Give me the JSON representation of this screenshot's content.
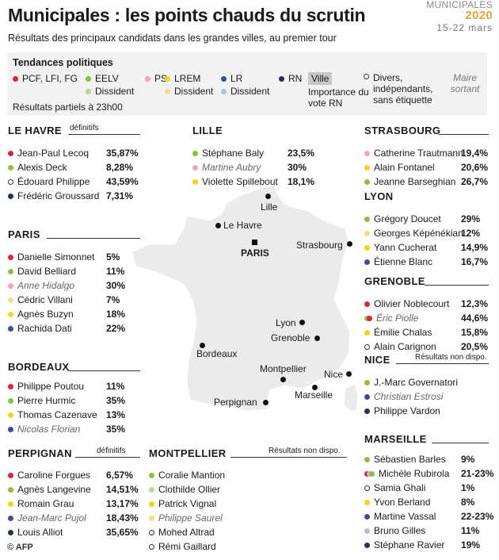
{
  "header": {
    "title": "Municipales : les points chauds du scrutin",
    "subtitle": "Résultats des principaux candidats dans les grandes villes, au premier tour",
    "brand_line1": "MUNICIPALES",
    "brand_year": "2020",
    "brand_dates": "15-22 mars"
  },
  "legend": {
    "title": "Tendances politiques",
    "items": [
      {
        "label": "PCF, LFI, FG",
        "color": "#d7263d"
      },
      {
        "label": "EELV",
        "color": "#8cbf3f"
      },
      {
        "label": "Dissident",
        "color": "#b5d98e"
      },
      {
        "label": "PS",
        "color": "#f2a7b5"
      },
      {
        "label": "LREM",
        "color": "#f5d31c"
      },
      {
        "label": "Dissident",
        "color": "#f3dc8a"
      },
      {
        "label": "LR",
        "color": "#3a4d9c"
      },
      {
        "label": "Dissident",
        "color": "#a9c3e0"
      },
      {
        "label": "RN",
        "color": "#26324f"
      }
    ],
    "ville_label": "Ville",
    "importance_label": "Importance du vote RN",
    "divers_label": "Divers, indépendants, sans étiquette",
    "maire_label": "Maire sortant",
    "partial_label": "Résultats partiels à 23h00"
  },
  "cities": {
    "le_havre": {
      "name": "LE HAVRE",
      "note": "définitifs",
      "candidates": [
        {
          "name": "Jean-Paul Lecoq",
          "value": "35,87%",
          "color": "#d7263d"
        },
        {
          "name": "Alexis Deck",
          "value": "8,28%",
          "color": "#8cbf3f"
        },
        {
          "name": "Édouard Philippe",
          "value": "43,59%",
          "color": "hollow"
        },
        {
          "name": "Frédéric Groussard",
          "value": "7,31%",
          "color": "#26324f"
        }
      ]
    },
    "lille": {
      "name": "LILLE",
      "candidates": [
        {
          "name": "Stéphane Baly",
          "value": "23,5%",
          "color": "#8cbf3f"
        },
        {
          "name": "Martine Aubry",
          "value": "30%",
          "color": "#f2a7b5",
          "mayor": true
        },
        {
          "name": "Violette Spillebout",
          "value": "18,1%",
          "color": "#f5d31c"
        }
      ]
    },
    "strasbourg": {
      "name": "STRASBOURG",
      "candidates": [
        {
          "name": "Catherine Trautmann",
          "value": "19,4%",
          "color": "#f2a7b5"
        },
        {
          "name": "Alain Fontanel",
          "value": "20,6%",
          "color": "#f5d31c"
        },
        {
          "name": "Jeanne Barseghian",
          "value": "26,7%",
          "color": "#8cbf3f"
        }
      ]
    },
    "paris": {
      "name": "PARIS",
      "candidates": [
        {
          "name": "Danielle Simonnet",
          "value": "5%",
          "color": "#d7263d"
        },
        {
          "name": "David Belliard",
          "value": "11%",
          "color": "#8cbf3f"
        },
        {
          "name": "Anne Hidalgo",
          "value": "30%",
          "color": "#f2a7b5",
          "mayor": true
        },
        {
          "name": "Cédric Villani",
          "value": "7%",
          "color": "#f3dc8a"
        },
        {
          "name": "Agnès Buzyn",
          "value": "18%",
          "color": "#f5d31c"
        },
        {
          "name": "Rachida Dati",
          "value": "22%",
          "color": "#3a4d9c"
        }
      ]
    },
    "lyon": {
      "name": "LYON",
      "candidates": [
        {
          "name": "Grégory Doucet",
          "value": "29%",
          "color": "#8cbf3f"
        },
        {
          "name": "Georges Képénékian",
          "value": "12%",
          "color": "#f3dc8a"
        },
        {
          "name": "Yann Cucherat",
          "value": "14,9%",
          "color": "#f5d31c"
        },
        {
          "name": "Étienne Blanc",
          "value": "16,7%",
          "color": "#3a4d9c"
        }
      ]
    },
    "grenoble": {
      "name": "GRENOBLE",
      "candidates": [
        {
          "name": "Olivier Noblecourt",
          "value": "12,3%",
          "color": "#d7263d"
        },
        {
          "name": "Éric Piolle",
          "value": "44,6%",
          "colors": [
            "#8cbf3f",
            "#d7263d"
          ],
          "mayor": true
        },
        {
          "name": "Émilie Chalas",
          "value": "15,8%",
          "color": "#f5d31c"
        },
        {
          "name": "Alain Carignon",
          "value": "20,5%",
          "color": "hollow"
        }
      ]
    },
    "bordeaux": {
      "name": "BORDEAUX",
      "candidates": [
        {
          "name": "Philippe Poutou",
          "value": "11%",
          "color": "#d7263d"
        },
        {
          "name": "Pierre Hurmic",
          "value": "35%",
          "color": "#8cbf3f"
        },
        {
          "name": "Thomas Cazenave",
          "value": "13%",
          "color": "#f5d31c"
        },
        {
          "name": "Nicolas Florian",
          "value": "35%",
          "color": "#3a4d9c",
          "mayor": true
        }
      ]
    },
    "nice": {
      "name": "NICE",
      "note": "Résultats non dispo.",
      "candidates": [
        {
          "name": "J.-Marc Governatori",
          "color": "#8cbf3f"
        },
        {
          "name": "Christian Estrosi",
          "color": "#3a4d9c",
          "mayor": true
        },
        {
          "name": "Philippe Vardon",
          "color": "#26324f"
        }
      ]
    },
    "perpignan": {
      "name": "PERPIGNAN",
      "note": "définitifs",
      "candidates": [
        {
          "name": "Caroline Forgues",
          "value": "6,57%",
          "color": "#d7263d"
        },
        {
          "name": "Agnès Langevine",
          "value": "14,51%",
          "color": "#8cbf3f"
        },
        {
          "name": "Romain Grau",
          "value": "13,17%",
          "color": "#f5d31c"
        },
        {
          "name": "Jean-Marc Pujol",
          "value": "18,43%",
          "color": "#3a4d9c",
          "mayor": true
        },
        {
          "name": "Louis Alliot",
          "value": "35,65%",
          "color": "#26324f"
        }
      ]
    },
    "montpellier": {
      "name": "MONTPELLIER",
      "note": "Résultats non dispo.",
      "candidates": [
        {
          "name": "Coralie Mantion",
          "color": "#8cbf3f"
        },
        {
          "name": "Clothilde Ollier",
          "color": "#b5d98e"
        },
        {
          "name": "Patrick Vignal",
          "color": "#f5d31c"
        },
        {
          "name": "Philippe Saurel",
          "color": "#f3dc8a",
          "mayor": true
        },
        {
          "name": "Mohed Altrad",
          "color": "hollow"
        },
        {
          "name": "Rémi Gaillard",
          "color": "hollow"
        }
      ]
    },
    "marseille": {
      "name": "MARSEILLE",
      "candidates": [
        {
          "name": "Sébastien Barles",
          "value": "9%",
          "color": "#8cbf3f"
        },
        {
          "name": "Michèle Rubirola",
          "value": "21-23%",
          "colors": [
            "#d7263d",
            "#f2a7b5",
            "#8cbf3f"
          ]
        },
        {
          "name": "Samia Ghali",
          "value": "1%",
          "color": "hollow"
        },
        {
          "name": "Yvon Berland",
          "value": "8%",
          "color": "#f5d31c"
        },
        {
          "name": "Martine Vassal",
          "value": "22-23%",
          "color": "#3a4d9c"
        },
        {
          "name": "Bruno Gilles",
          "value": "11%",
          "color": "#a9c3e0"
        },
        {
          "name": "Stéphane Ravier",
          "value": "19%",
          "color": "#26324f"
        }
      ]
    }
  },
  "map_labels": {
    "lille": "Lille",
    "le_havre": "Le Havre",
    "paris": "PARIS",
    "strasbourg": "Strasbourg",
    "lyon": "Lyon",
    "grenoble": "Grenoble",
    "bordeaux": "Bordeaux",
    "montpellier": "Montpellier",
    "nice": "Nice",
    "marseille": "Marseille",
    "perpignan": "Perpignan"
  },
  "footer": "© AFP"
}
